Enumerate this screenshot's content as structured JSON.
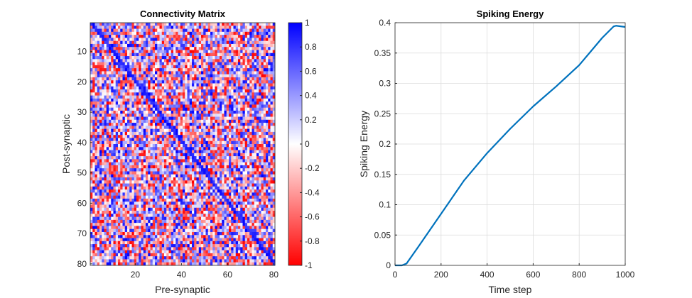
{
  "chart_data": [
    {
      "type": "heatmap",
      "title": "Connectivity Matrix",
      "xlabel": "Pre-synaptic",
      "ylabel": "Post-synaptic",
      "rows": 80,
      "cols": 80,
      "x_ticks": [
        "20",
        "40",
        "60",
        "80"
      ],
      "y_ticks": [
        "10",
        "20",
        "30",
        "40",
        "50",
        "60",
        "70",
        "80"
      ],
      "value_range": [
        -1,
        1
      ],
      "pattern": "random weights in [-1, 1] with a diagonal band of strong positive values from top-left to bottom-right",
      "colorbar": {
        "ticks": [
          "1",
          "0.8",
          "0.6",
          "0.4",
          "0.2",
          "0",
          "-0.2",
          "-0.4",
          "-0.6",
          "-0.8",
          "-1"
        ],
        "colors": {
          "positive": "#0000ff",
          "zero": "#ffffff",
          "negative": "#ff0000"
        }
      }
    },
    {
      "type": "line",
      "title": "Spiking Energy",
      "xlabel": "Time step",
      "ylabel": "Spiking Energy",
      "xlim": [
        0,
        1000
      ],
      "ylim": [
        0,
        0.4
      ],
      "x_ticks": [
        "0",
        "200",
        "400",
        "600",
        "800",
        "1000"
      ],
      "y_ticks": [
        "0",
        "0.05",
        "0.1",
        "0.15",
        "0.2",
        "0.25",
        "0.3",
        "0.35",
        "0.4"
      ],
      "grid": true,
      "series": [
        {
          "color": "#0072bd",
          "x": [
            0,
            30,
            50,
            100,
            200,
            300,
            400,
            500,
            600,
            700,
            800,
            900,
            950,
            960,
            1000
          ],
          "y": [
            0,
            0,
            0.003,
            0.03,
            0.085,
            0.14,
            0.185,
            0.225,
            0.262,
            0.295,
            0.33,
            0.375,
            0.394,
            0.395,
            0.393
          ]
        }
      ]
    }
  ]
}
